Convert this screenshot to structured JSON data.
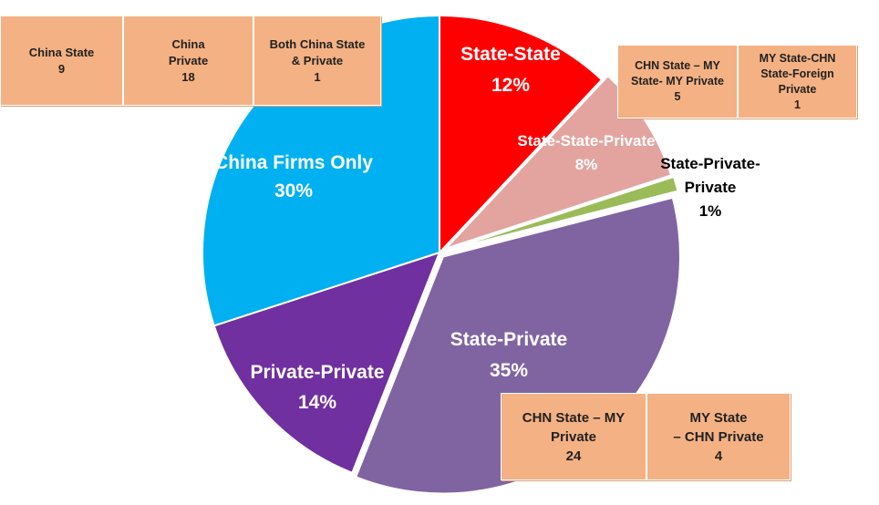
{
  "chart_data": {
    "type": "pie",
    "slices": [
      {
        "label": "State-State",
        "value": 12,
        "value_label": "12%",
        "color": "#ff0000",
        "label_color": "#ffffff"
      },
      {
        "label": "State-State-Private",
        "value": 8,
        "value_label": "8%",
        "color": "#e3a4a0",
        "label_color": "#ffffff"
      },
      {
        "label": "State-Private-Private",
        "value": 1,
        "value_label": "1%",
        "color": "#9bbb59",
        "label_color": "#000000"
      },
      {
        "label": "State-Private",
        "value": 35,
        "value_label": "35%",
        "color": "#8064a2",
        "label_color": "#ffffff"
      },
      {
        "label": "Private-Private",
        "value": 14,
        "value_label": "14%",
        "color": "#7030a0",
        "label_color": "#ffffff"
      },
      {
        "label": "China Firms Only",
        "value": 30,
        "value_label": "30%",
        "color": "#00b0f0",
        "label_color": "#ffffff"
      }
    ],
    "title": ""
  },
  "callouts": {
    "china_firms": [
      {
        "text": "China State\n9"
      },
      {
        "text": "China\nPrivate\n18"
      },
      {
        "text": "Both China State\n& Private\n1"
      }
    ],
    "state_state_private": [
      {
        "text": "CHN State – MY\nState- MY Private\n5"
      },
      {
        "text": "MY State-CHN\nState-Foreign\nPrivate\n1"
      }
    ],
    "state_private": [
      {
        "text": "CHN State – MY\nPrivate\n24"
      },
      {
        "text": "MY State\n– CHN Private\n4"
      }
    ]
  },
  "colors": {
    "callout_fill": "#f4b183",
    "background": "#ffffff"
  }
}
